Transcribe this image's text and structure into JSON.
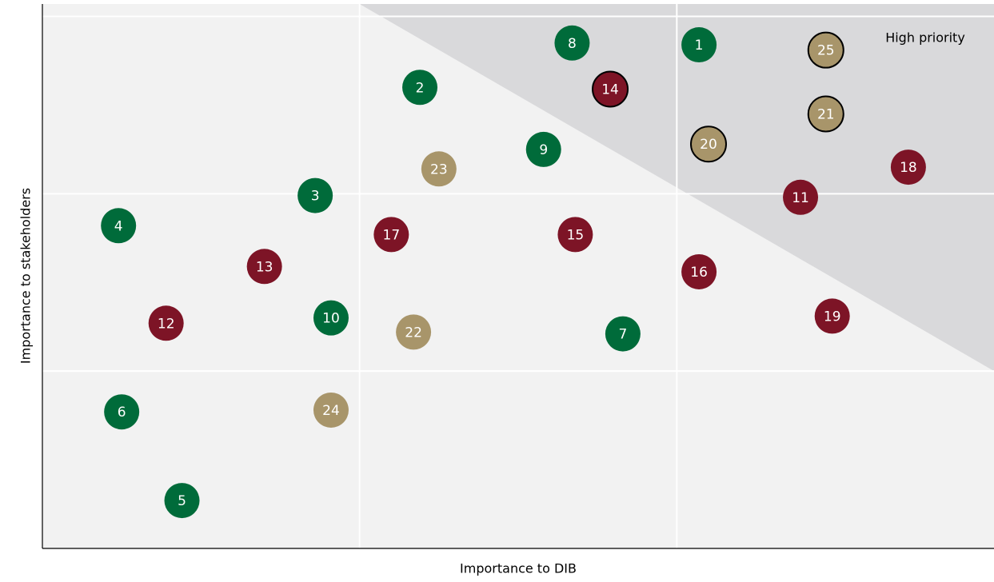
{
  "chart_data": {
    "type": "scatter",
    "x_label": "Importance to DIB",
    "y_label": "Importance to stakeholders",
    "xlim": [
      0,
      3
    ],
    "ylim": [
      0,
      3.07
    ],
    "grid": true,
    "region": {
      "label": "High priority",
      "color": "#d9d9db",
      "polygon": [
        [
          1,
          3.07
        ],
        [
          3,
          3.07
        ],
        [
          3,
          1.0
        ]
      ]
    },
    "points": [
      {
        "label": "1",
        "x": 2.07,
        "y": 2.84,
        "color": "#006b3a",
        "outline": false
      },
      {
        "label": "2",
        "x": 1.19,
        "y": 2.6,
        "color": "#006b3a",
        "outline": false
      },
      {
        "label": "3",
        "x": 0.86,
        "y": 1.99,
        "color": "#006b3a",
        "outline": false
      },
      {
        "label": "4",
        "x": 0.24,
        "y": 1.82,
        "color": "#006b3a",
        "outline": false
      },
      {
        "label": "5",
        "x": 0.44,
        "y": 0.27,
        "color": "#006b3a",
        "outline": false
      },
      {
        "label": "6",
        "x": 0.25,
        "y": 0.77,
        "color": "#006b3a",
        "outline": false
      },
      {
        "label": "7",
        "x": 1.83,
        "y": 1.21,
        "color": "#006b3a",
        "outline": false
      },
      {
        "label": "8",
        "x": 1.67,
        "y": 2.85,
        "color": "#006b3a",
        "outline": false
      },
      {
        "label": "9",
        "x": 1.58,
        "y": 2.25,
        "color": "#006b3a",
        "outline": false
      },
      {
        "label": "10",
        "x": 0.91,
        "y": 1.3,
        "color": "#006b3a",
        "outline": false
      },
      {
        "label": "11",
        "x": 2.39,
        "y": 1.98,
        "color": "#7d1426",
        "outline": false
      },
      {
        "label": "12",
        "x": 0.39,
        "y": 1.27,
        "color": "#7d1426",
        "outline": false
      },
      {
        "label": "13",
        "x": 0.7,
        "y": 1.59,
        "color": "#7d1426",
        "outline": false
      },
      {
        "label": "14",
        "x": 1.79,
        "y": 2.59,
        "color": "#7d1426",
        "outline": true
      },
      {
        "label": "15",
        "x": 1.68,
        "y": 1.77,
        "color": "#7d1426",
        "outline": false
      },
      {
        "label": "16",
        "x": 2.07,
        "y": 1.56,
        "color": "#7d1426",
        "outline": false
      },
      {
        "label": "17",
        "x": 1.1,
        "y": 1.77,
        "color": "#7d1426",
        "outline": false
      },
      {
        "label": "18",
        "x": 2.73,
        "y": 2.15,
        "color": "#7d1426",
        "outline": false
      },
      {
        "label": "19",
        "x": 2.49,
        "y": 1.31,
        "color": "#7d1426",
        "outline": false
      },
      {
        "label": "20",
        "x": 2.1,
        "y": 2.28,
        "color": "#a8956a",
        "outline": true
      },
      {
        "label": "21",
        "x": 2.47,
        "y": 2.45,
        "color": "#a8956a",
        "outline": true
      },
      {
        "label": "22",
        "x": 1.17,
        "y": 1.22,
        "color": "#a8956a",
        "outline": false
      },
      {
        "label": "23",
        "x": 1.25,
        "y": 2.14,
        "color": "#a8956a",
        "outline": false
      },
      {
        "label": "24",
        "x": 0.91,
        "y": 0.78,
        "color": "#a8956a",
        "outline": false
      },
      {
        "label": "25",
        "x": 2.47,
        "y": 2.81,
        "color": "#a8956a",
        "outline": true
      }
    ]
  }
}
